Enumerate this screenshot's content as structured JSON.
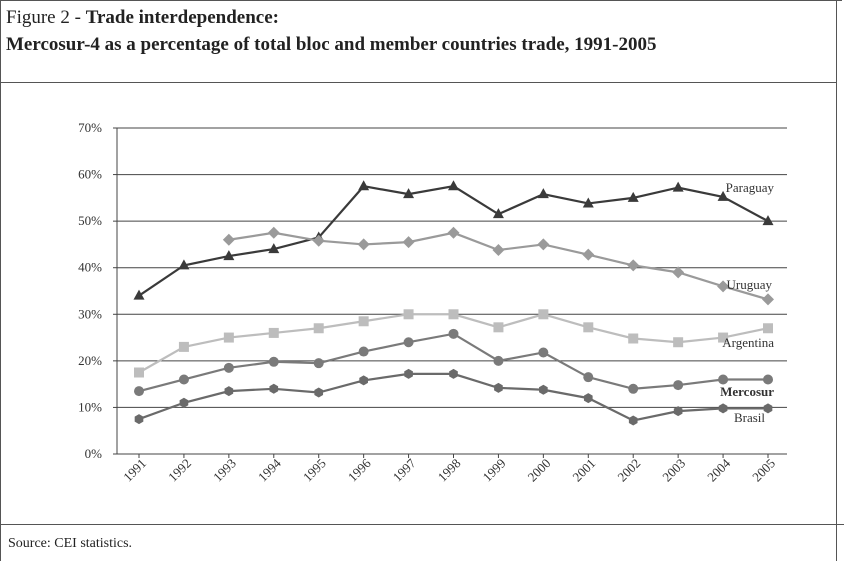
{
  "header": {
    "figure_prefix": "Figure 2 - ",
    "title_line1": "Trade interdependence:",
    "title_line2": "Mercosur-4 as a percentage of total bloc and member countries trade, 1991-2005"
  },
  "footer": {
    "source": "Source: CEI statistics."
  },
  "chart_data": {
    "type": "line",
    "title": "",
    "xlabel": "",
    "ylabel": "",
    "x": [
      "1991",
      "1992",
      "1993",
      "1994",
      "1995",
      "1996",
      "1997",
      "1998",
      "1999",
      "2000",
      "2001",
      "2002",
      "2003",
      "2004",
      "2005"
    ],
    "ylim": [
      0,
      70
    ],
    "yticks": [
      "0%",
      "10%",
      "20%",
      "30%",
      "40%",
      "50%",
      "60%",
      "70%"
    ],
    "grid": "horizontal",
    "legend": "inline labels at right end of each line",
    "series": [
      {
        "name": "Paraguay",
        "color": "#3a3a3a",
        "marker": "triangle",
        "values": [
          34,
          40.5,
          42.5,
          44,
          46.5,
          57.5,
          55.8,
          57.5,
          51.5,
          55.8,
          53.8,
          55,
          57.2,
          55.2,
          50
        ]
      },
      {
        "name": "Uruguay",
        "color": "#9a9a9a",
        "marker": "diamond",
        "values": [
          null,
          null,
          46,
          47.5,
          45.8,
          45,
          45.5,
          47.5,
          43.8,
          45,
          42.8,
          40.5,
          39,
          36,
          33.2
        ]
      },
      {
        "name": "Argentina",
        "color": "#bdbdbd",
        "marker": "square",
        "values": [
          17.5,
          23,
          25,
          26,
          27,
          28.5,
          30,
          30,
          27.2,
          30,
          27.2,
          24.8,
          24,
          25,
          27
        ]
      },
      {
        "name": "Mercosur",
        "color": "#7a7a7a",
        "marker": "circle",
        "values": [
          13.5,
          16,
          18.5,
          19.8,
          19.5,
          22,
          24,
          25.8,
          20,
          21.8,
          16.5,
          14,
          14.8,
          16,
          16
        ]
      },
      {
        "name": "Brasil",
        "color": "#6a6a6a",
        "marker": "hexagon",
        "values": [
          7.5,
          11,
          13.5,
          14,
          13.2,
          15.8,
          17.2,
          17.2,
          14.2,
          13.8,
          12,
          7.2,
          9.2,
          9.8,
          9.8
        ]
      }
    ]
  }
}
